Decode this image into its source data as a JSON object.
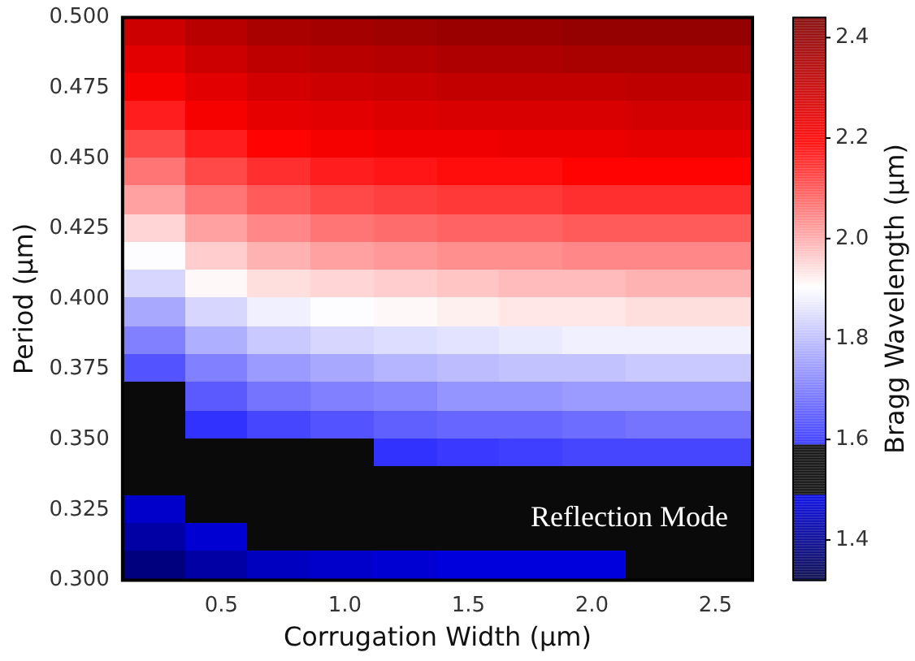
{
  "chart_data": {
    "type": "heatmap",
    "xlabel": "Corrugation Width (µm)",
    "ylabel": "Period (µm)",
    "clabel": "Bragg Wavelength (µm)",
    "x": [
      0.2275,
      0.4825,
      0.7375,
      0.9925,
      1.2475,
      1.5025,
      1.7575,
      2.0125,
      2.2675,
      2.5225
    ],
    "y": [
      0.495,
      0.485,
      0.475,
      0.465,
      0.455,
      0.445,
      0.435,
      0.425,
      0.415,
      0.405,
      0.395,
      0.385,
      0.375,
      0.365,
      0.355,
      0.345,
      0.335,
      0.325,
      0.315,
      0.305
    ],
    "xlim": [
      0.1,
      2.65
    ],
    "xticks": [
      0.5,
      {
        "value": 1,
        "label": "1.0"
      },
      1.5,
      {
        "value": 2,
        "label": "2.0"
      },
      2.5
    ],
    "ylim": [
      0.3,
      0.5
    ],
    "yticks": [
      {
        "value": 0.3,
        "label": "0.300"
      },
      0.325,
      {
        "value": 0.35,
        "label": "0.350"
      },
      0.375,
      {
        "value": 0.4,
        "label": "0.400"
      },
      0.425,
      {
        "value": 0.45,
        "label": "0.450"
      },
      0.475,
      {
        "value": 0.5,
        "label": "0.500"
      }
    ],
    "clim": [
      1.32,
      2.44
    ],
    "cticks": [
      1.4,
      1.6,
      1.8,
      {
        "value": 2,
        "label": "2.0"
      },
      2.2,
      2.4
    ],
    "cells": [
      [
        2.29,
        2.33,
        2.36,
        2.37,
        2.38,
        2.39,
        2.39,
        2.4,
        2.4,
        2.4
      ],
      [
        2.25,
        2.29,
        2.32,
        2.33,
        2.34,
        2.35,
        2.35,
        2.36,
        2.36,
        2.36
      ],
      [
        2.21,
        2.25,
        2.28,
        2.29,
        2.3,
        2.31,
        2.31,
        2.31,
        2.32,
        2.32
      ],
      [
        2.16,
        2.21,
        2.24,
        2.25,
        2.26,
        2.27,
        2.27,
        2.27,
        2.28,
        2.28
      ],
      [
        2.11,
        2.16,
        2.19,
        2.21,
        2.22,
        2.22,
        2.23,
        2.23,
        2.24,
        2.24
      ],
      [
        2.06,
        2.11,
        2.14,
        2.16,
        2.17,
        2.18,
        2.18,
        2.19,
        2.19,
        2.19
      ],
      [
        2.01,
        2.06,
        2.09,
        2.11,
        2.12,
        2.13,
        2.13,
        2.14,
        2.14,
        2.14
      ],
      [
        1.95,
        2.01,
        2.04,
        2.06,
        2.07,
        2.08,
        2.08,
        2.09,
        2.09,
        2.09
      ],
      [
        1.9,
        1.96,
        1.99,
        2.01,
        2.02,
        2.03,
        2.03,
        2.04,
        2.04,
        2.04
      ],
      [
        1.84,
        1.91,
        1.94,
        1.95,
        1.96,
        1.97,
        1.98,
        1.98,
        1.99,
        1.99
      ],
      [
        1.77,
        1.84,
        1.88,
        1.9,
        1.91,
        1.92,
        1.93,
        1.93,
        1.94,
        1.94
      ],
      [
        1.71,
        1.78,
        1.82,
        1.84,
        1.85,
        1.86,
        1.87,
        1.88,
        1.88,
        1.88
      ],
      [
        1.64,
        1.71,
        1.75,
        1.77,
        1.79,
        1.8,
        1.81,
        1.81,
        1.82,
        1.82
      ],
      [
        1.58,
        1.65,
        1.69,
        1.71,
        1.72,
        1.74,
        1.74,
        1.75,
        1.75,
        1.75
      ],
      [
        1.55,
        1.59,
        1.62,
        1.64,
        1.66,
        1.67,
        1.67,
        1.68,
        1.69,
        1.69
      ],
      [
        1.53,
        1.56,
        1.58,
        1.58,
        1.59,
        1.6,
        1.61,
        1.62,
        1.62,
        1.62
      ],
      [
        1.5,
        1.53,
        1.55,
        1.55,
        1.56,
        1.57,
        1.57,
        1.57,
        1.58,
        1.58
      ],
      [
        1.46,
        1.5,
        1.52,
        1.53,
        1.53,
        1.54,
        1.54,
        1.54,
        1.55,
        1.55
      ],
      [
        1.42,
        1.47,
        1.49,
        1.5,
        1.51,
        1.51,
        1.51,
        1.52,
        1.52,
        1.52
      ],
      [
        1.38,
        1.42,
        1.45,
        1.46,
        1.47,
        1.48,
        1.48,
        1.48,
        1.49,
        1.49
      ]
    ],
    "annotations": [
      "Reflection Mode"
    ]
  }
}
